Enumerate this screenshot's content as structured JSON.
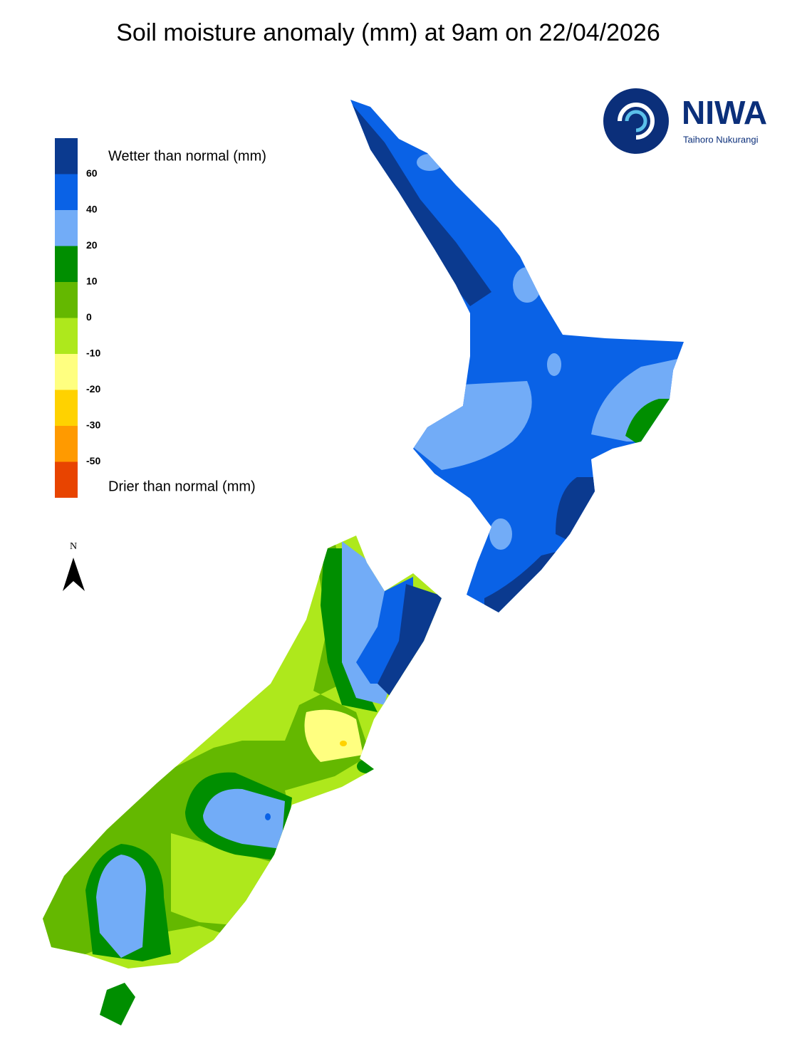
{
  "title": "Soil moisture anomaly (mm) at 9am on 22/04/2026",
  "legend": {
    "wetter_label": "Wetter than normal (mm)",
    "drier_label": "Drier than normal (mm)",
    "colors": [
      "#0b3a8f",
      "#0a62e6",
      "#72acf7",
      "#008e00",
      "#64b800",
      "#aee81c",
      "#ffff80",
      "#ffd200",
      "#ff9a00",
      "#e84400"
    ],
    "ticks": [
      60,
      40,
      20,
      10,
      0,
      -10,
      -20,
      -30,
      -50
    ]
  },
  "north_arrow": {
    "label": "N"
  },
  "logo": {
    "name": "NIWA",
    "subtitle": "Taihoro Nukurangi"
  }
}
